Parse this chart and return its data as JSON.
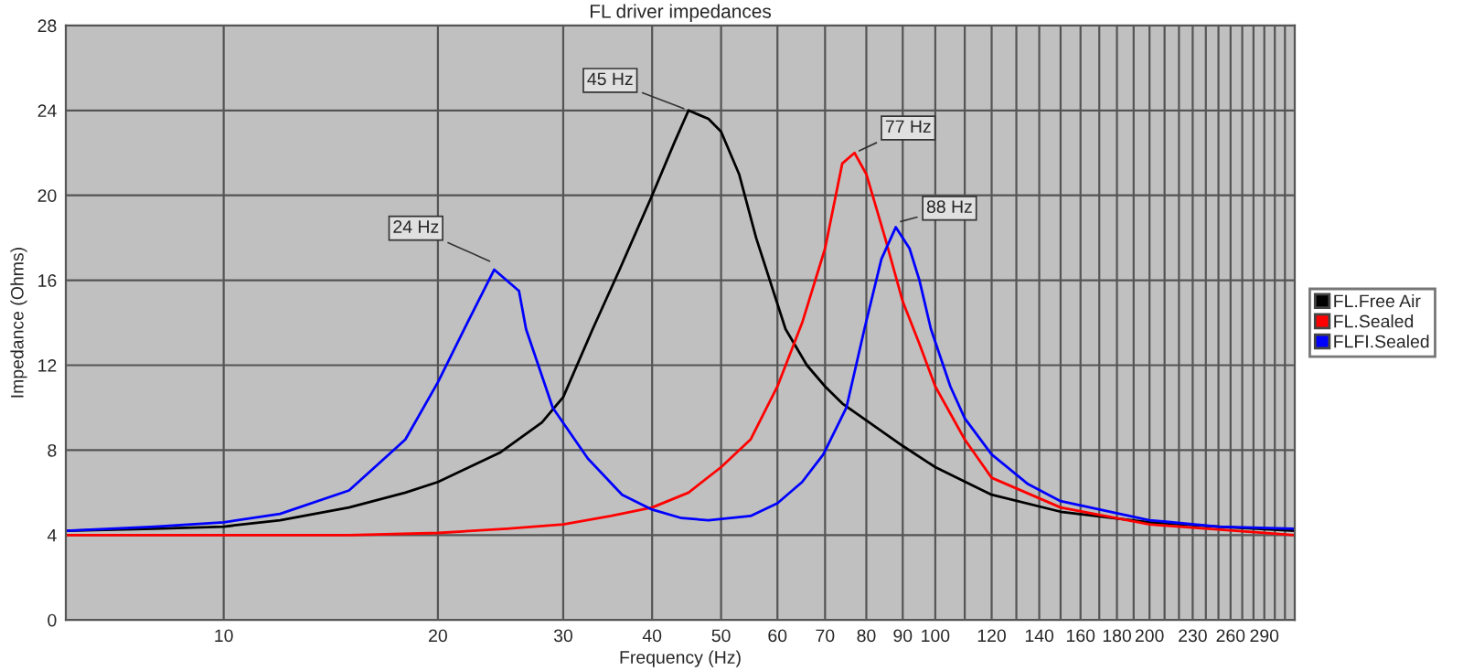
{
  "chart_data": {
    "type": "line",
    "title": "FL driver impedances",
    "xlabel": "Frequency (Hz)",
    "ylabel": "Impedance (Ohms)",
    "log": "x",
    "xlim": [
      6,
      320
    ],
    "ylim": [
      0,
      28
    ],
    "yticks": [
      0,
      4,
      8,
      12,
      16,
      20,
      24,
      28
    ],
    "xticks": [
      10,
      20,
      30,
      40,
      50,
      60,
      70,
      80,
      90,
      100,
      {
        "value": 110,
        "label": null
      },
      120,
      {
        "value": 130,
        "label": null
      },
      140,
      {
        "value": 150,
        "label": null
      },
      160,
      {
        "value": 170,
        "label": null
      },
      180,
      {
        "value": 190,
        "label": null
      },
      200,
      {
        "value": 210,
        "label": null
      },
      {
        "value": 220,
        "label": null
      },
      230,
      {
        "value": 240,
        "label": null
      },
      {
        "value": 250,
        "label": null
      },
      260,
      {
        "value": 270,
        "label": null
      },
      {
        "value": 280,
        "label": null
      },
      290,
      {
        "value": 300,
        "label": null
      },
      {
        "value": 310,
        "label": null
      }
    ],
    "grid": true,
    "legend": "right",
    "marker": "none",
    "line_style": "solid",
    "series": [
      {
        "name": "FL.Free Air",
        "color": "#000000",
        "x": [
          6,
          8,
          10,
          12,
          15,
          18,
          20,
          24.5,
          28,
          30,
          33,
          36,
          40,
          43,
          45,
          48,
          50,
          53,
          56,
          61.6,
          66,
          70,
          74,
          80,
          90,
          100,
          120,
          150,
          200,
          250,
          320
        ],
        "values": [
          4.2,
          4.3,
          4.4,
          4.7,
          5.3,
          6.0,
          6.5,
          7.9,
          9.3,
          10.5,
          13.7,
          16.5,
          20,
          22.5,
          24,
          23.6,
          23,
          21,
          18,
          13.7,
          12,
          11,
          10.2,
          9.4,
          8.2,
          7.2,
          5.9,
          5.1,
          4.6,
          4.4,
          4.2
        ]
      },
      {
        "name": "FL.Sealed",
        "color": "#ff0000",
        "x": [
          6,
          10,
          15,
          20,
          25,
          30,
          35,
          40,
          45,
          50,
          55,
          60,
          65,
          70,
          74,
          77,
          80,
          85,
          90,
          95,
          100,
          110,
          120,
          150,
          200,
          320
        ],
        "values": [
          4.0,
          4.0,
          4.0,
          4.1,
          4.3,
          4.5,
          4.9,
          5.3,
          6.0,
          7.2,
          8.5,
          11,
          14,
          17.5,
          21.5,
          22,
          21,
          18,
          15,
          13,
          11,
          8.5,
          6.7,
          5.3,
          4.5,
          4.0
        ]
      },
      {
        "name": "FLFI.Sealed",
        "color": "#0000ff",
        "x": [
          6,
          8,
          10,
          12,
          15,
          18,
          20,
          22,
          24,
          26,
          26.6,
          29,
          32.5,
          36.3,
          40,
          44,
          48,
          55,
          60,
          65,
          69.6,
          75,
          79.5,
          84,
          88,
          92,
          95,
          98.6,
          105,
          110,
          120,
          135,
          150,
          200,
          250,
          320
        ],
        "values": [
          4.2,
          4.4,
          4.6,
          5.0,
          6.1,
          8.5,
          11.2,
          14,
          16.5,
          15.5,
          13.7,
          10,
          7.6,
          5.9,
          5.2,
          4.8,
          4.7,
          4.9,
          5.5,
          6.5,
          7.8,
          10,
          13.7,
          17,
          18.5,
          17.5,
          16,
          13.7,
          11,
          9.5,
          7.8,
          6.4,
          5.6,
          4.7,
          4.4,
          4.3
        ]
      }
    ],
    "annotations": [
      {
        "text": "45 Hz",
        "x": 45,
        "y": 24
      },
      {
        "text": "77 Hz",
        "x": 77,
        "y": 22
      },
      {
        "text": "24 Hz",
        "x": 24,
        "y": 16.8
      },
      {
        "text": "88 Hz",
        "x": 88,
        "y": 18.7
      }
    ]
  }
}
